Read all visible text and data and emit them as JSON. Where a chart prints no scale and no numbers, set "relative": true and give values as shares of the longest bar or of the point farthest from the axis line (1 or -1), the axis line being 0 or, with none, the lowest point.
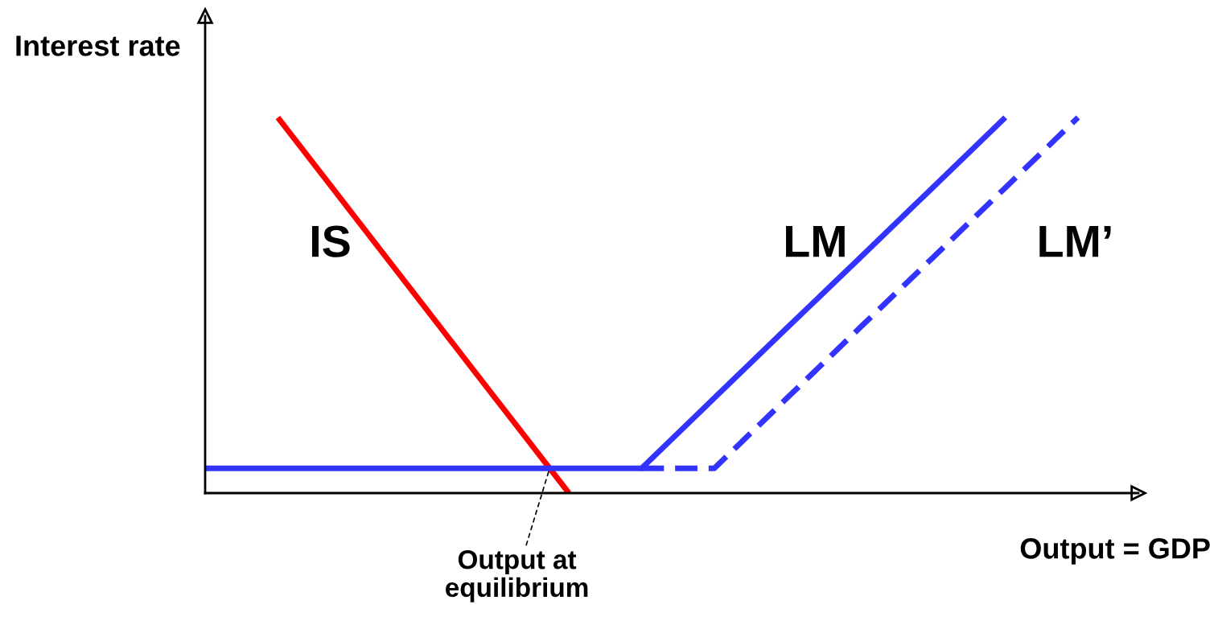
{
  "chart_data": {
    "type": "line",
    "relative": true,
    "xlabel": "Output = GDP",
    "ylabel": "Interest rate",
    "legend": false,
    "marker": "none",
    "categories": [
      null,
      null,
      null,
      null,
      null,
      null,
      null,
      null,
      null,
      null,
      null,
      null,
      null
    ],
    "series": [
      {
        "name": "IS",
        "color": "#ff0000",
        "line_style": "solid",
        "values": [
          null,
          1,
          0.75,
          0.5,
          0.25,
          0,
          null,
          null,
          null,
          null,
          null,
          null,
          null
        ]
      },
      {
        "name": "LM",
        "color": "#3333ff",
        "line_style": "solid",
        "values": [
          0.066,
          0.066,
          0.066,
          0.066,
          0.066,
          0.066,
          0.066,
          0.253,
          0.44,
          0.626,
          0.813,
          1,
          null
        ]
      },
      {
        "name": "LM’",
        "color": "#3333ff",
        "line_style": "dashed",
        "values": [
          null,
          null,
          null,
          null,
          null,
          null,
          0.066,
          0.066,
          0.253,
          0.44,
          0.626,
          0.813,
          1
        ]
      }
    ],
    "annotations": [
      "Output at\nequilibrium"
    ]
  }
}
